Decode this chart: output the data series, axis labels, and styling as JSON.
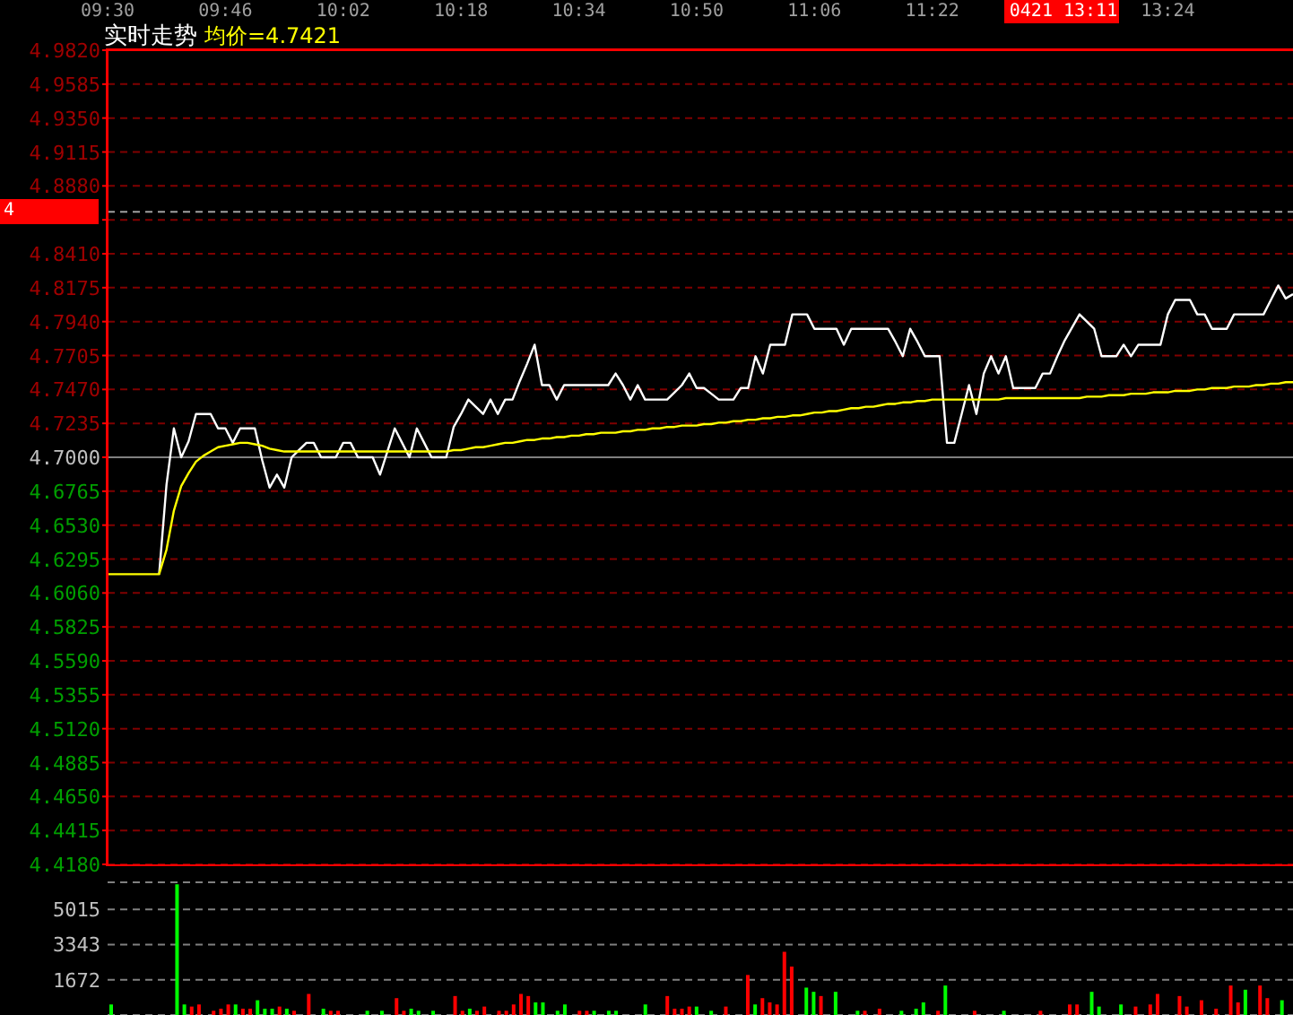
{
  "chart_data": [
    {
      "type": "line",
      "title": "实时走势",
      "legend": "top left",
      "marker": "none",
      "line_style": "solid",
      "grid": "y",
      "annotations": [
        "0421 13:11",
        "4"
      ],
      "categories": [
        "09:30",
        null,
        null,
        null,
        null,
        null,
        null,
        null,
        null,
        null,
        null,
        null,
        null,
        null,
        null,
        null,
        "09:46",
        null,
        null,
        null,
        null,
        null,
        null,
        null,
        null,
        null,
        null,
        null,
        null,
        null,
        null,
        null,
        "10:02",
        null,
        null,
        null,
        null,
        null,
        null,
        null,
        null,
        null,
        null,
        null,
        null,
        null,
        null,
        null,
        "10:18",
        null,
        null,
        null,
        null,
        null,
        null,
        null,
        null,
        null,
        null,
        null,
        null,
        null,
        null,
        null,
        "10:34",
        null,
        null,
        null,
        null,
        null,
        null,
        null,
        null,
        null,
        null,
        null,
        null,
        null,
        null,
        null,
        "10:50",
        null,
        null,
        null,
        null,
        null,
        null,
        null,
        null,
        null,
        null,
        null,
        null,
        null,
        null,
        null,
        "11:06",
        null,
        null,
        null,
        null,
        null,
        null,
        null,
        null,
        null,
        null,
        null,
        null,
        null,
        null,
        null,
        "11:22",
        null,
        null,
        null,
        null,
        null,
        null,
        null,
        null,
        null,
        null,
        null,
        null,
        null,
        null,
        null,
        null,
        null,
        null,
        null,
        null,
        null,
        null,
        null,
        null,
        null,
        null,
        null,
        null,
        null,
        null,
        null,
        "13:24",
        null,
        null,
        null,
        null,
        null,
        null,
        null,
        null,
        null,
        null,
        null,
        null,
        null,
        null,
        null,
        null,
        null
      ],
      "ylim": [
        4.418,
        4.982
      ],
      "yticks": [
        {
          "value": 4.418,
          "label": "4.4180"
        },
        {
          "value": 4.4415,
          "label": "4.4415"
        },
        {
          "value": 4.465,
          "label": "4.4650"
        },
        {
          "value": 4.4885,
          "label": "4.4885"
        },
        {
          "value": 4.512,
          "label": "4.5120"
        },
        {
          "value": 4.5355,
          "label": "4.5355"
        },
        {
          "value": 4.559,
          "label": "4.5590"
        },
        {
          "value": 4.5825,
          "label": "4.5825"
        },
        {
          "value": 4.606,
          "label": "4.6060"
        },
        {
          "value": 4.6295,
          "label": "4.6295"
        },
        {
          "value": 4.653,
          "label": "4.6530"
        },
        {
          "value": 4.6765,
          "label": "4.6765"
        },
        {
          "value": 4.7,
          "label": "4.7000"
        },
        {
          "value": 4.7235,
          "label": "4.7235"
        },
        {
          "value": 4.747,
          "label": "4.7470"
        },
        {
          "value": 4.7705,
          "label": "4.7705"
        },
        {
          "value": 4.794,
          "label": "4.7940"
        },
        {
          "value": 4.8175,
          "label": "4.8175"
        },
        {
          "value": 4.841,
          "label": "4.8410"
        },
        {
          "value": 4.8645,
          "label": null
        },
        {
          "value": 4.888,
          "label": "4.8880"
        },
        {
          "value": 4.9115,
          "label": "4.9115"
        },
        {
          "value": 4.935,
          "label": "4.9350"
        },
        {
          "value": 4.9585,
          "label": "4.9585"
        },
        {
          "value": 4.982,
          "label": "4.9820"
        }
      ],
      "ref_lines": [
        {
          "axis": "y",
          "value": 4.7,
          "color": "#808080",
          "line_style": "solid"
        },
        {
          "axis": "y",
          "value": 4.87,
          "color": "#a0a0a0",
          "line_style": "dashed"
        }
      ],
      "series": [
        {
          "color": "#ffffff",
          "values": [
            null,
            null,
            null,
            null,
            null,
            null,
            null,
            4.619,
            4.681,
            4.72,
            4.7,
            4.711,
            4.73,
            4.73,
            4.73,
            4.72,
            4.72,
            4.71,
            4.72,
            4.72,
            4.72,
            4.698,
            4.679,
            4.688,
            4.679,
            4.7,
            4.705,
            4.71,
            4.71,
            4.7,
            4.7,
            4.7,
            4.71,
            4.71,
            4.7,
            4.7,
            4.7,
            4.688,
            4.704,
            4.72,
            4.71,
            4.7,
            4.72,
            4.71,
            4.7,
            4.7,
            4.7,
            4.721,
            4.73,
            4.74,
            4.735,
            4.73,
            4.74,
            4.73,
            4.74,
            4.74,
            4.753,
            4.765,
            4.778,
            4.75,
            4.75,
            4.74,
            4.75,
            4.75,
            4.75,
            4.75,
            4.75,
            4.75,
            4.75,
            4.758,
            4.75,
            4.74,
            4.75,
            4.74,
            4.74,
            4.74,
            4.74,
            4.745,
            4.75,
            4.758,
            4.748,
            4.748,
            4.744,
            4.74,
            4.74,
            4.74,
            4.748,
            4.748,
            4.77,
            4.758,
            4.778,
            4.778,
            4.778,
            4.799,
            4.799,
            4.799,
            4.789,
            4.789,
            4.789,
            4.789,
            4.778,
            4.789,
            4.789,
            4.789,
            4.789,
            4.789,
            4.789,
            4.78,
            4.77,
            4.789,
            4.78,
            4.77,
            4.77,
            4.77,
            4.71,
            4.71,
            4.73,
            4.75,
            4.73,
            4.758,
            4.77,
            4.758,
            4.77,
            4.748,
            4.748,
            4.748,
            4.748,
            4.758,
            4.758,
            4.77,
            4.781,
            4.79,
            4.799,
            4.794,
            4.789,
            4.77,
            4.77,
            4.77,
            4.778,
            4.77,
            4.778,
            4.778,
            4.778,
            4.778,
            4.799,
            4.809,
            4.809,
            4.809,
            4.799,
            4.799,
            4.789,
            4.789,
            4.789,
            4.799,
            4.799,
            4.799,
            4.799,
            4.799,
            4.809,
            4.819,
            4.81,
            4.813
          ]
        },
        {
          "name": "均价=4.7421",
          "color": "#ffff00",
          "values": [
            4.619,
            4.619,
            4.619,
            4.619,
            4.619,
            4.619,
            4.619,
            4.619,
            4.636,
            4.663,
            4.68,
            4.689,
            4.697,
            4.701,
            4.704,
            4.707,
            4.708,
            4.709,
            4.71,
            4.71,
            4.709,
            4.708,
            4.706,
            4.705,
            4.704,
            4.704,
            4.704,
            4.704,
            4.704,
            4.704,
            4.704,
            4.704,
            4.704,
            4.704,
            4.704,
            4.704,
            4.704,
            4.704,
            4.704,
            4.704,
            4.704,
            4.704,
            4.704,
            4.704,
            4.704,
            4.704,
            4.704,
            4.705,
            4.705,
            4.706,
            4.707,
            4.707,
            4.708,
            4.709,
            4.71,
            4.71,
            4.711,
            4.712,
            4.712,
            4.713,
            4.713,
            4.714,
            4.714,
            4.715,
            4.715,
            4.716,
            4.716,
            4.717,
            4.717,
            4.717,
            4.718,
            4.718,
            4.719,
            4.719,
            4.72,
            4.72,
            4.721,
            4.721,
            4.722,
            4.722,
            4.722,
            4.723,
            4.723,
            4.724,
            4.724,
            4.725,
            4.725,
            4.726,
            4.726,
            4.727,
            4.727,
            4.728,
            4.728,
            4.729,
            4.729,
            4.73,
            4.731,
            4.731,
            4.732,
            4.732,
            4.733,
            4.734,
            4.734,
            4.735,
            4.735,
            4.736,
            4.737,
            4.737,
            4.738,
            4.738,
            4.739,
            4.739,
            4.74,
            4.74,
            4.74,
            4.74,
            4.74,
            4.74,
            4.74,
            4.74,
            4.74,
            4.74,
            4.741,
            4.741,
            4.741,
            4.741,
            4.741,
            4.741,
            4.741,
            4.741,
            4.741,
            4.741,
            4.741,
            4.742,
            4.742,
            4.742,
            4.743,
            4.743,
            4.743,
            4.744,
            4.744,
            4.744,
            4.745,
            4.745,
            4.745,
            4.746,
            4.746,
            4.746,
            4.747,
            4.747,
            4.748,
            4.748,
            4.748,
            4.749,
            4.749,
            4.749,
            4.75,
            4.75,
            4.751,
            4.751,
            4.752,
            4.752
          ]
        }
      ]
    },
    {
      "type": "bar",
      "grid": "y",
      "tick_labels": "y",
      "categories": [
        null,
        null,
        null,
        null,
        null,
        null,
        null,
        null,
        null,
        null,
        null,
        null,
        null,
        null,
        null,
        null,
        null,
        null,
        null,
        null,
        null,
        null,
        null,
        null,
        null,
        null,
        null,
        null,
        null,
        null,
        null,
        null,
        null,
        null,
        null,
        null,
        null,
        null,
        null,
        null,
        null,
        null,
        null,
        null,
        null,
        null,
        null,
        null,
        null,
        null,
        null,
        null,
        null,
        null,
        null,
        null,
        null,
        null,
        null,
        null,
        null,
        null,
        null,
        null,
        null,
        null,
        null,
        null,
        null,
        null,
        null,
        null,
        null,
        null,
        null,
        null,
        null,
        null,
        null,
        null,
        null,
        null,
        null,
        null,
        null,
        null,
        null,
        null,
        null,
        null,
        null,
        null,
        null,
        null,
        null,
        null,
        null,
        null,
        null,
        null,
        null,
        null,
        null,
        null,
        null,
        null,
        null,
        null,
        null,
        null,
        null,
        null,
        null,
        null,
        null,
        null,
        null,
        null,
        null,
        null,
        null,
        null,
        null,
        null,
        null,
        null,
        null,
        null,
        null,
        null,
        null,
        null,
        null,
        null,
        null,
        null,
        null,
        null,
        null,
        null,
        null,
        null,
        null,
        null,
        null,
        null,
        null,
        null,
        null,
        null,
        null,
        null,
        null,
        null,
        null,
        null,
        null,
        null,
        null,
        null,
        null,
        null
      ],
      "ylim": [
        0,
        6300
      ],
      "yticks": [
        1672,
        3343,
        5015
      ],
      "values": [
        500,
        null,
        null,
        null,
        null,
        null,
        null,
        null,
        null,
        6200,
        500,
        400,
        500,
        null,
        200,
        300,
        500,
        500,
        300,
        300,
        700,
        300,
        300,
        400,
        300,
        200,
        null,
        1000,
        null,
        300,
        200,
        200,
        null,
        null,
        null,
        200,
        null,
        200,
        null,
        800,
        200,
        300,
        200,
        null,
        200,
        null,
        null,
        900,
        200,
        300,
        200,
        400,
        null,
        200,
        200,
        500,
        1000,
        900,
        600,
        600,
        null,
        200,
        500,
        null,
        200,
        200,
        200,
        null,
        200,
        200,
        null,
        null,
        null,
        500,
        null,
        null,
        900,
        300,
        300,
        400,
        400,
        null,
        200,
        null,
        400,
        null,
        null,
        1900,
        500,
        800,
        600,
        500,
        3000,
        2300,
        null,
        1300,
        1100,
        900,
        null,
        1100,
        null,
        null,
        200,
        200,
        null,
        300,
        null,
        null,
        200,
        null,
        300,
        600,
        null,
        200,
        1400,
        null,
        null,
        null,
        200,
        null,
        null,
        null,
        200,
        null,
        null,
        null,
        null,
        200,
        null,
        null,
        null,
        500,
        500,
        null,
        1100,
        400,
        null,
        null,
        500,
        null,
        400,
        null,
        500,
        1000,
        null,
        null,
        900,
        400,
        null,
        700,
        null,
        300,
        null,
        1400,
        600,
        1200,
        null,
        1400,
        800,
        null,
        700,
        null
      ],
      "colors": [
        "#00ff00",
        null,
        null,
        null,
        null,
        null,
        null,
        null,
        null,
        "#00ff00",
        "#00ff00",
        "#ff0000",
        "#ff0000",
        null,
        "#ff0000",
        "#ff0000",
        "#ff0000",
        "#00ff00",
        "#ff0000",
        "#ff0000",
        "#00ff00",
        "#00ff00",
        "#00ff00",
        "#ff0000",
        "#00ff00",
        "#ff0000",
        null,
        "#ff0000",
        null,
        "#00ff00",
        "#ff0000",
        "#ff0000",
        null,
        null,
        null,
        "#00ff00",
        null,
        "#00ff00",
        null,
        "#ff0000",
        "#ff0000",
        "#00ff00",
        "#00ff00",
        null,
        "#00ff00",
        null,
        null,
        "#ff0000",
        "#ff0000",
        "#00ff00",
        "#ff0000",
        "#ff0000",
        null,
        "#ff0000",
        "#ff0000",
        "#ff0000",
        "#ff0000",
        "#ff0000",
        "#00ff00",
        "#00ff00",
        null,
        "#00ff00",
        "#00ff00",
        null,
        "#ff0000",
        "#ff0000",
        "#00ff00",
        null,
        "#00ff00",
        "#00ff00",
        null,
        null,
        null,
        "#00ff00",
        null,
        null,
        "#ff0000",
        "#ff0000",
        "#ff0000",
        "#ff0000",
        "#00ff00",
        null,
        "#00ff00",
        null,
        "#ff0000",
        null,
        null,
        "#ff0000",
        "#00ff00",
        "#ff0000",
        "#ff0000",
        "#ff0000",
        "#ff0000",
        "#ff0000",
        null,
        "#00ff00",
        "#00ff00",
        "#ff0000",
        null,
        "#00ff00",
        null,
        null,
        "#00ff00",
        "#ff0000",
        null,
        "#ff0000",
        null,
        null,
        "#00ff00",
        null,
        "#00ff00",
        "#00ff00",
        null,
        "#ff0000",
        "#00ff00",
        null,
        null,
        null,
        "#ff0000",
        null,
        null,
        null,
        "#00ff00",
        null,
        null,
        null,
        null,
        "#ff0000",
        null,
        null,
        null,
        "#ff0000",
        "#ff0000",
        null,
        "#00ff00",
        "#00ff00",
        null,
        null,
        "#00ff00",
        null,
        "#ff0000",
        null,
        "#ff0000",
        "#ff0000",
        null,
        null,
        "#ff0000",
        "#ff0000",
        null,
        "#ff0000",
        null,
        "#ff0000",
        null,
        "#ff0000",
        "#ff0000",
        "#00ff00",
        null,
        "#ff0000",
        "#ff0000",
        null,
        "#00ff00",
        null
      ]
    }
  ]
}
